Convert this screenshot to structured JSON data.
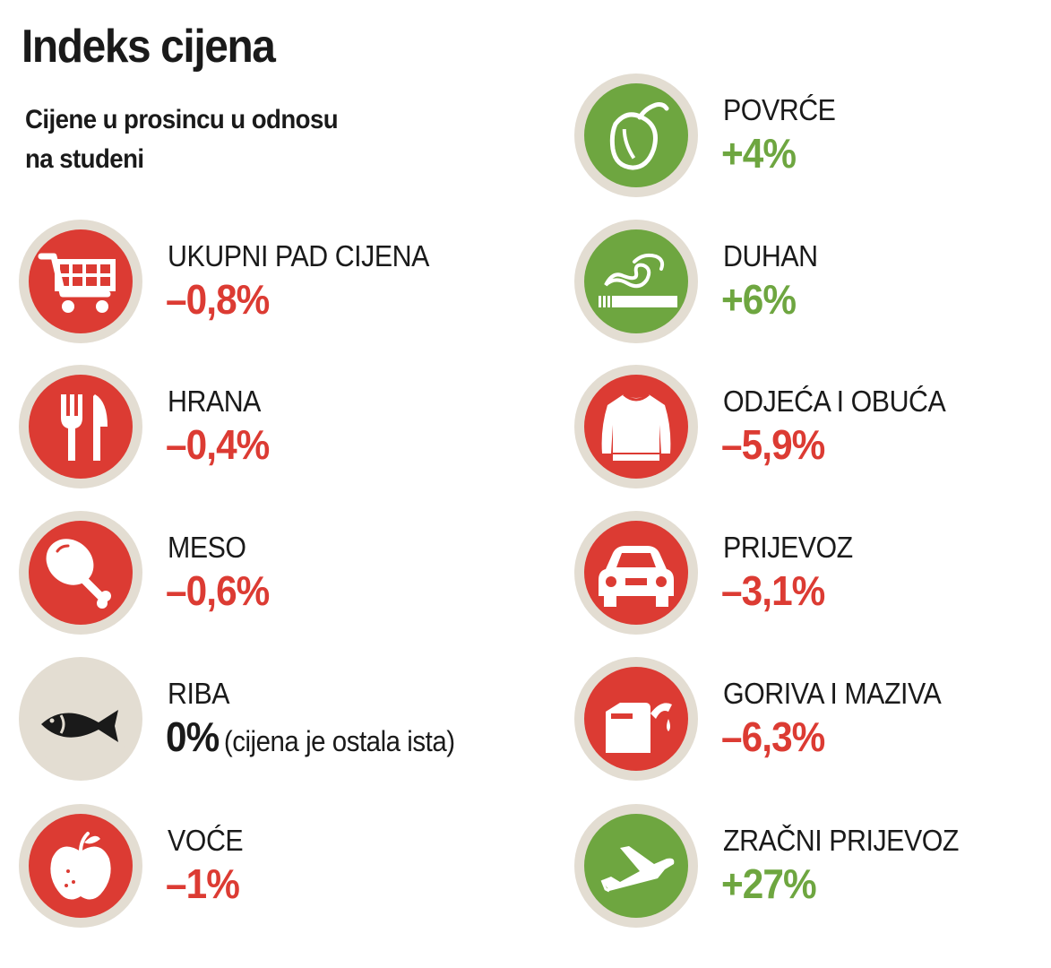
{
  "title": "Indeks cijena",
  "subtitle": "Cijene u prosincu u odnosu na studeni",
  "colors": {
    "decrease": "#dc3b33",
    "increase": "#6ea640",
    "neutral": "#1a1a1a",
    "ring": "#e3ddd2"
  },
  "left_column": [
    {
      "label": "UKUPNI PAD CIJENA",
      "value": "–0,8%",
      "icon": "shopping-cart-icon"
    },
    {
      "label": "HRANA",
      "value": "–0,4%",
      "icon": "fork-knife-icon"
    },
    {
      "label": "MESO",
      "value": "–0,6%",
      "icon": "drumstick-icon"
    },
    {
      "label": "RIBA",
      "value": "0%",
      "note": "(cijena je ostala ista)",
      "icon": "fish-icon"
    },
    {
      "label": "VOĆE",
      "value": "–1%",
      "icon": "apple-icon"
    }
  ],
  "right_column": [
    {
      "label": "POVRĆE",
      "value": "+4%",
      "icon": "pepper-icon"
    },
    {
      "label": "DUHAN",
      "value": "+6%",
      "icon": "cigarette-icon"
    },
    {
      "label": "ODJEĆA I OBUĆA",
      "value": "–5,9%",
      "icon": "sweater-icon"
    },
    {
      "label": "PRIJEVOZ",
      "value": "–3,1%",
      "icon": "car-icon"
    },
    {
      "label": "GORIVA I MAZIVA",
      "value": "–6,3%",
      "icon": "fuel-can-icon"
    },
    {
      "label": "ZRAČNI PRIJEVOZ",
      "value": "+27%",
      "icon": "airplane-icon"
    }
  ]
}
